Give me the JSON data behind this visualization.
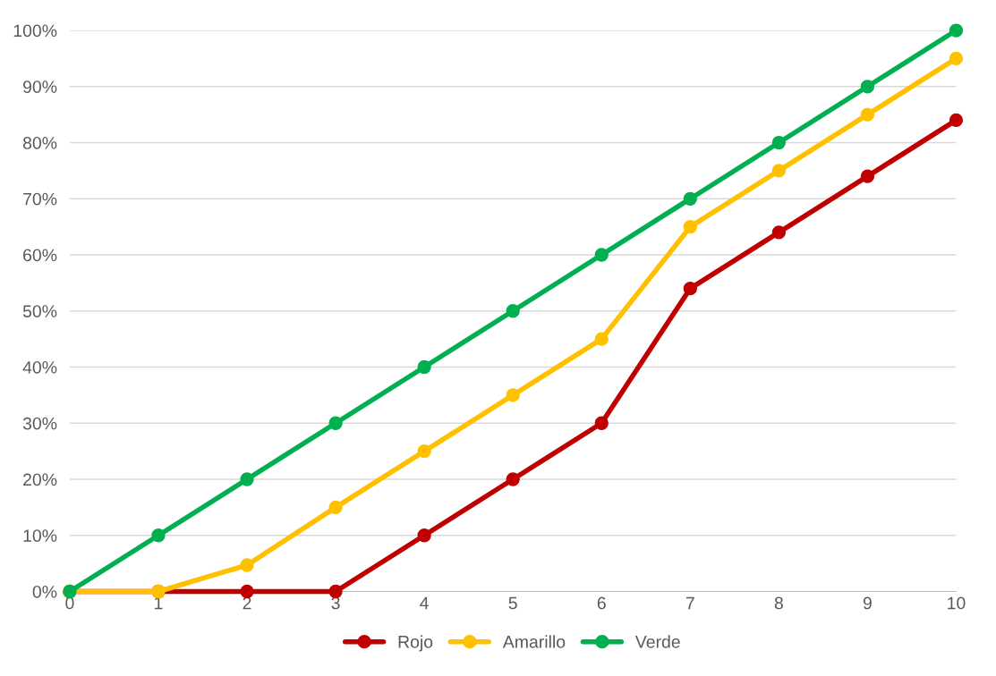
{
  "chart_data": {
    "type": "line",
    "x": [
      0,
      1,
      2,
      3,
      4,
      5,
      6,
      7,
      8,
      9,
      10
    ],
    "xlim": [
      0,
      10
    ],
    "xticks": [
      0,
      1,
      2,
      3,
      4,
      5,
      6,
      7,
      8,
      9,
      10
    ],
    "ylim": [
      0,
      100
    ],
    "yticks": [
      {
        "value": 0,
        "label": "0%"
      },
      {
        "value": 10,
        "label": "10%"
      },
      {
        "value": 20,
        "label": "20%"
      },
      {
        "value": 30,
        "label": "30%"
      },
      {
        "value": 40,
        "label": "40%"
      },
      {
        "value": 50,
        "label": "50%"
      },
      {
        "value": 60,
        "label": "60%"
      },
      {
        "value": 70,
        "label": "70%"
      },
      {
        "value": 80,
        "label": "80%"
      },
      {
        "value": 90,
        "label": "90%"
      },
      {
        "value": 100,
        "label": "100%"
      }
    ],
    "series": [
      {
        "name": "Rojo",
        "color": "#c00000",
        "values": [
          0,
          0,
          0,
          0,
          10,
          20,
          30,
          54,
          64,
          74,
          84
        ]
      },
      {
        "name": "Amarillo",
        "color": "#ffc000",
        "values": [
          0,
          0,
          4.7,
          15,
          25,
          35,
          45,
          65,
          75,
          85,
          95
        ]
      },
      {
        "name": "Verde",
        "color": "#00b050",
        "values": [
          0,
          10,
          20,
          30,
          40,
          50,
          60,
          70,
          80,
          90,
          100
        ]
      }
    ],
    "grid": "y",
    "legend": "bottom",
    "marker": "circle",
    "line_style": "solid"
  }
}
